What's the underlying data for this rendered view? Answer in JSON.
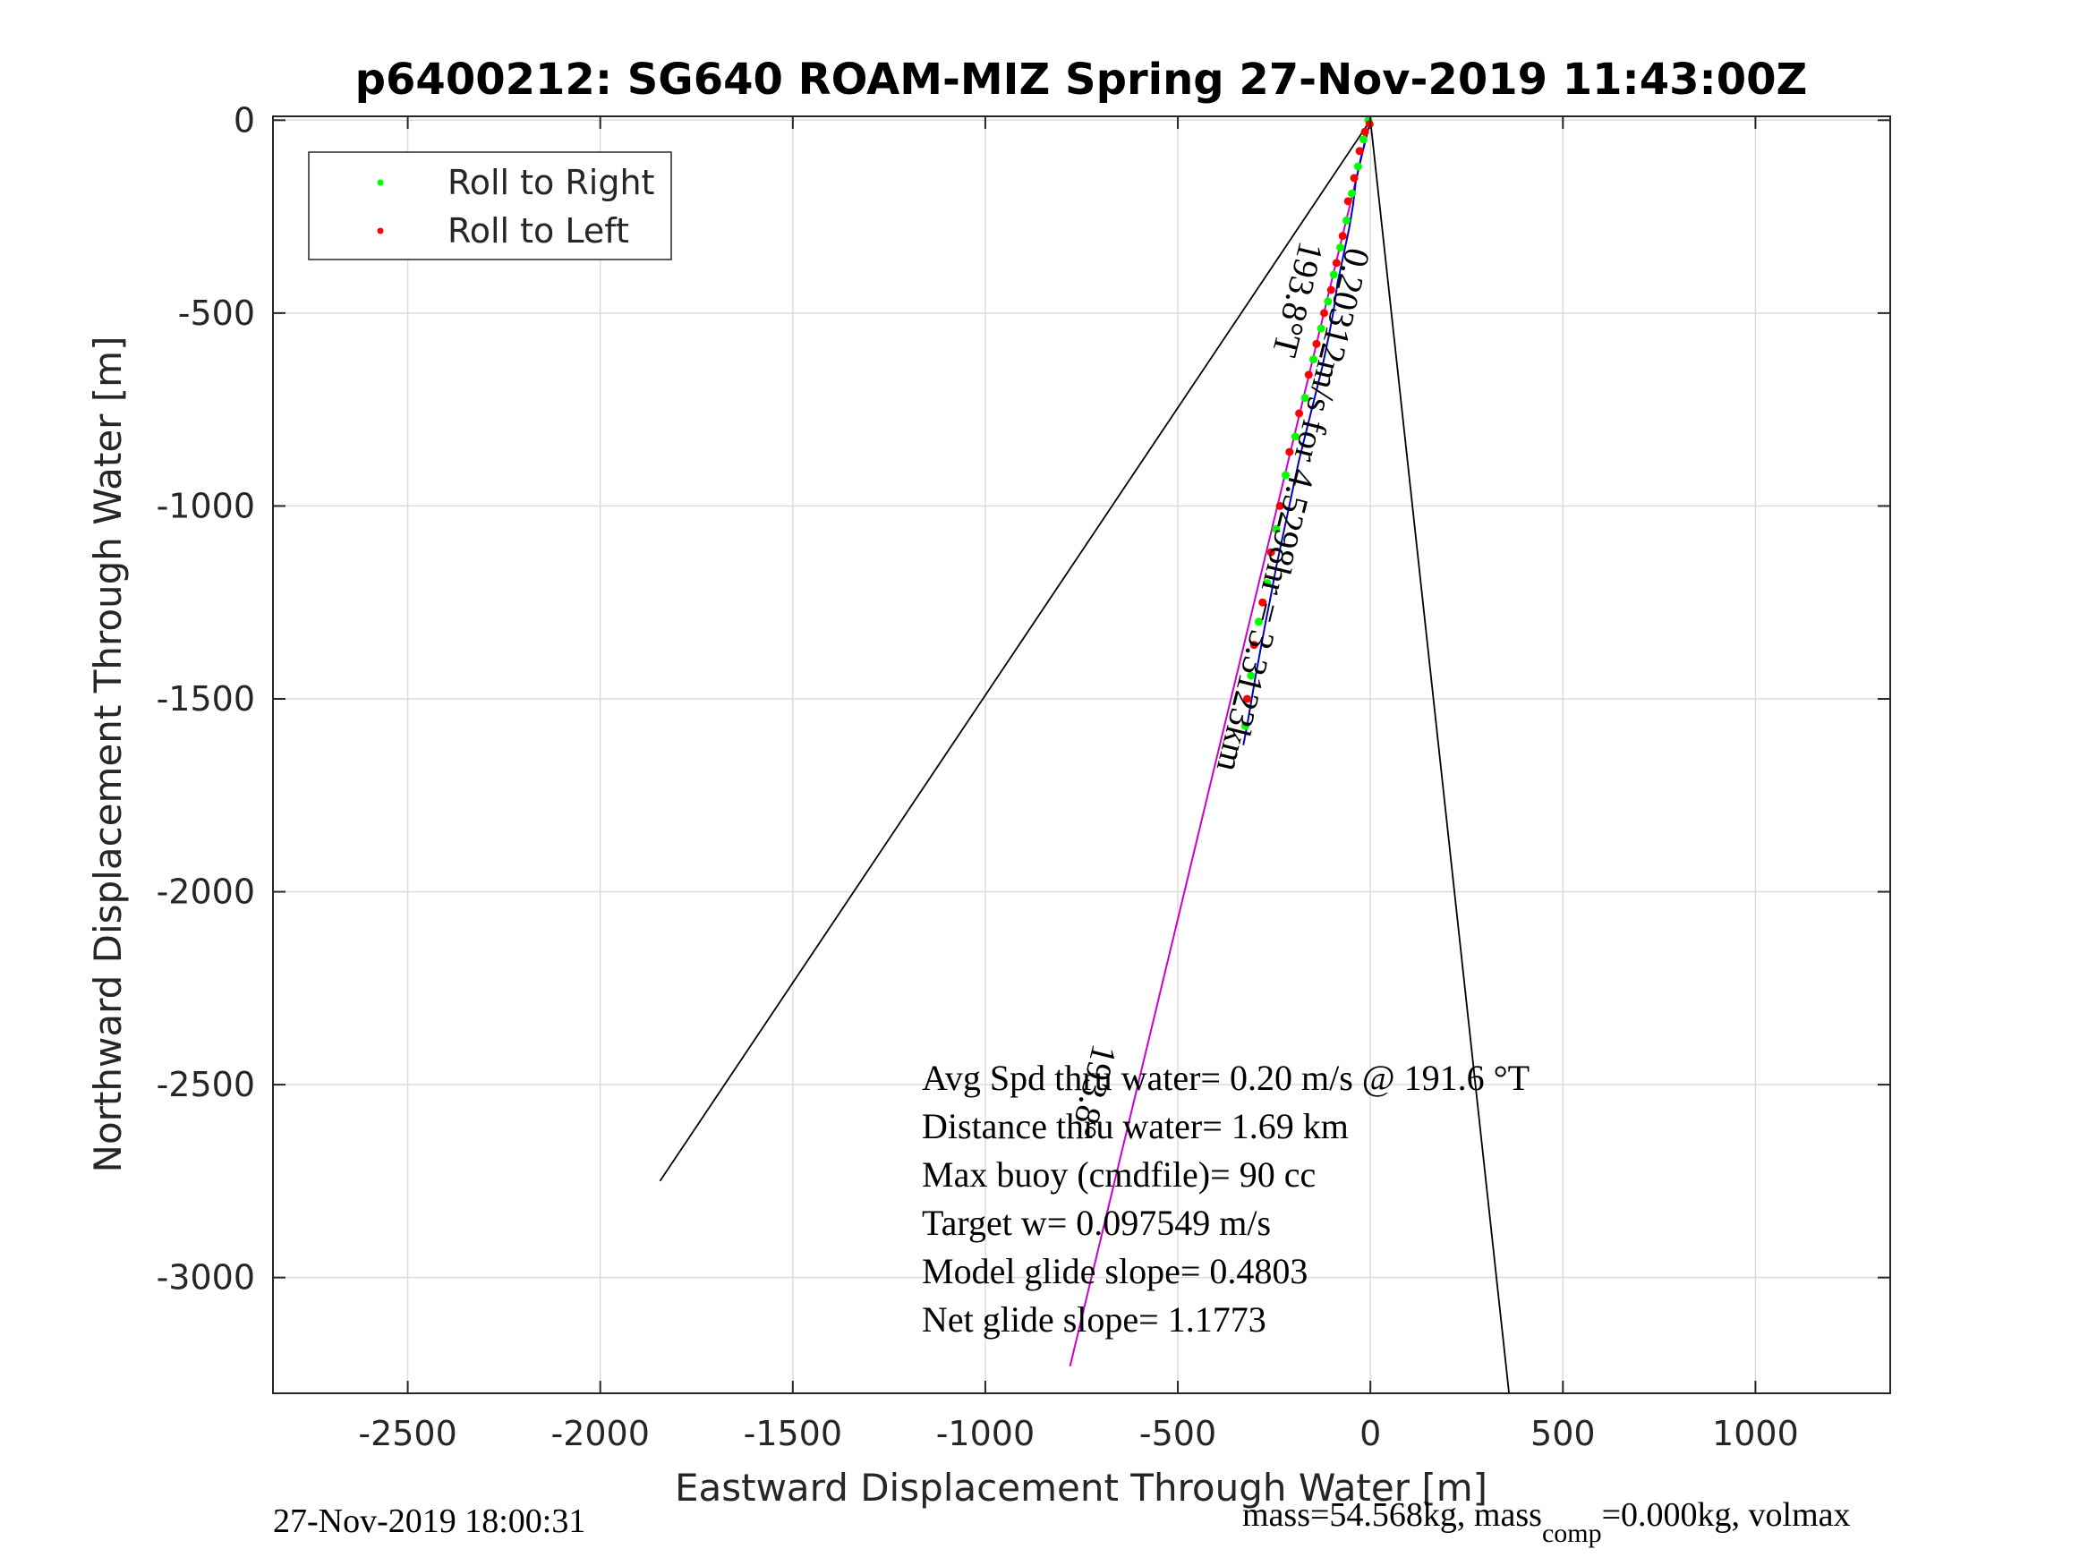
{
  "chart_data": {
    "type": "line",
    "title": "p6400212: SG640 ROAM-MIZ Spring 27-Nov-2019 11:43:00Z",
    "xlabel": "Eastward Displacement Through Water [m]",
    "ylabel": "Northward Displacement Through Water [m]",
    "xlim": [
      -2850,
      1350
    ],
    "ylim": [
      -3300,
      10
    ],
    "xticks": [
      -2500,
      -2000,
      -1500,
      -1000,
      -500,
      0,
      500,
      1000
    ],
    "yticks": [
      0,
      -500,
      -1000,
      -1500,
      -2000,
      -2500,
      -3000
    ],
    "xtick_labels": [
      "-2500",
      "-2000",
      "-1500",
      "-1000",
      "-500",
      "0",
      "500",
      "1000"
    ],
    "ytick_labels": [
      "0",
      "-500",
      "-1000",
      "-1500",
      "-2000",
      "-2500",
      "-3000"
    ],
    "grid": true,
    "legend": {
      "placement": "top-left",
      "entries": [
        {
          "label": "Roll to Right",
          "color": "#00ff00"
        },
        {
          "label": "Roll to Left",
          "color": "#ff0000"
        }
      ]
    },
    "series": [
      {
        "kind": "cone-line",
        "color": "#000000",
        "x": [
          0,
          -1845
        ],
        "y": [
          0,
          -2750
        ]
      },
      {
        "kind": "cone-line",
        "color": "#000000",
        "x": [
          0,
          360
        ],
        "y": [
          0,
          -3300
        ]
      },
      {
        "kind": "heading-line",
        "color": "#cc00cc",
        "x": [
          0,
          -780
        ],
        "y": [
          0,
          -3230
        ]
      },
      {
        "kind": "track",
        "color": "#0000cc",
        "x": [
          0,
          -10,
          -25,
          -38,
          -45,
          -55,
          -70,
          -85,
          -95,
          -108,
          -125,
          -145,
          -165,
          -185,
          -200,
          -215,
          -230,
          -245,
          -258,
          -272,
          -285,
          -298,
          -310,
          -322,
          -330
        ],
        "y": [
          0,
          -40,
          -100,
          -160,
          -220,
          -280,
          -350,
          -420,
          -490,
          -560,
          -640,
          -720,
          -800,
          -880,
          -950,
          -1020,
          -1090,
          -1160,
          -1230,
          -1300,
          -1370,
          -1440,
          -1510,
          -1580,
          -1620
        ]
      },
      {
        "kind": "roll-right",
        "color": "#00ff00",
        "x": [
          -5,
          -18,
          -32,
          -48,
          -62,
          -78,
          -95,
          -110,
          -128,
          -148,
          -170,
          -195,
          -220,
          -245,
          -268,
          -290,
          -310,
          -325
        ],
        "y": [
          0,
          -50,
          -120,
          -190,
          -260,
          -330,
          -400,
          -470,
          -540,
          -620,
          -720,
          -820,
          -920,
          -1060,
          -1200,
          -1300,
          -1440,
          -1570
        ]
      },
      {
        "kind": "roll-left",
        "color": "#ff0000",
        "x": [
          -2,
          -14,
          -28,
          -42,
          -58,
          -72,
          -88,
          -102,
          -120,
          -140,
          -160,
          -185,
          -210,
          -235,
          -258,
          -280,
          -302,
          -320
        ],
        "y": [
          -10,
          -30,
          -80,
          -150,
          -210,
          -300,
          -370,
          -440,
          -500,
          -580,
          -660,
          -760,
          -860,
          -1000,
          -1120,
          -1250,
          -1360,
          -1500
        ]
      }
    ],
    "annotations": {
      "heading_label": "193.8°T",
      "speed_label": "0.20312m/s for 4.5298hr = 3.3123km",
      "heading_label_lower": "193.8°",
      "stats": [
        "Avg Spd thru water=  0.20 m/s @ 191.6 °T",
        "Distance thru water=  1.69 km",
        "Max buoy (cmdfile)= 90 cc",
        "Target w= 0.097549 m/s",
        "Model glide slope= 0.4803",
        "Net glide slope= 1.1773"
      ]
    },
    "footer": {
      "timestamp": "27-Nov-2019 18:00:31",
      "mass_prefix": "mass=54.568kg, mass",
      "mass_sub": "comp",
      "mass_suffix": "=0.000kg, volmax"
    }
  }
}
